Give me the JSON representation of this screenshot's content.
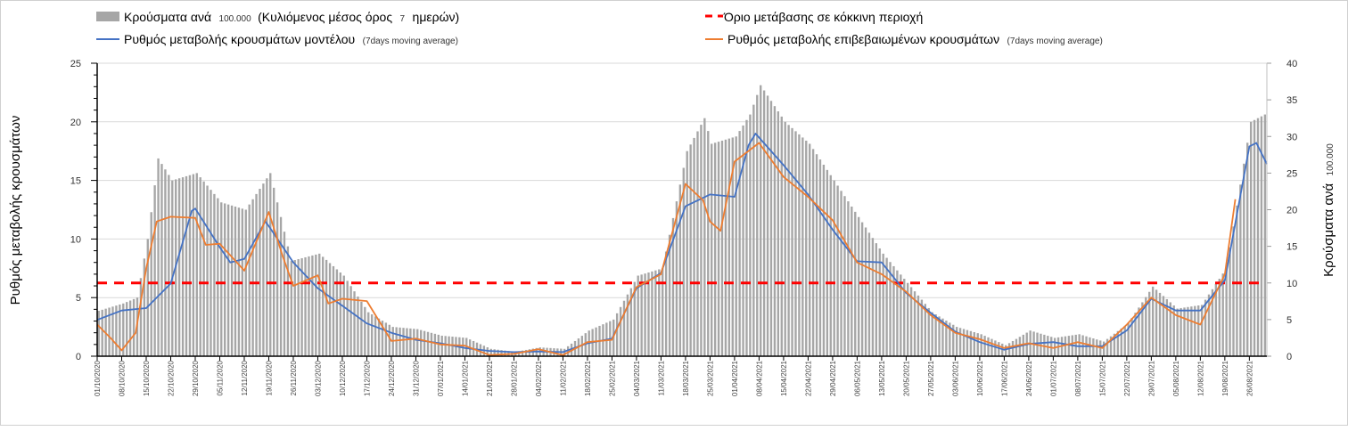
{
  "chart_data": {
    "type": "bar+line",
    "legend": {
      "bars_main": "Κρούσματα ανά",
      "bars_small1": "100.000",
      "bars_main2": "(Κυλιόμενος μέσος όρος",
      "bars_small2": "7",
      "bars_main3": "ημερών)",
      "model_main": "Ρυθμός μεταβολής κρουσμάτων μοντέλου",
      "model_small": "(7days moving average)",
      "threshold": "Όριο μετάβασης σε κόκκινη περιοχή",
      "confirmed_main": "Ρυθμός μεταβολής επιβεβαιωμένων κρουσμάτων",
      "confirmed_small": "(7days moving average)",
      "placement": "top"
    },
    "ylabel_left": "Ρυθμός μεταβολής κρουσμάτων",
    "ylabel_right_main": "Κρούσματα ανά",
    "ylabel_right_small": "100.000",
    "ylim_left": [
      0,
      25
    ],
    "yticks_left": [
      "0",
      "5",
      "10",
      "15",
      "20",
      "25"
    ],
    "ylim_right": [
      0,
      40
    ],
    "yticks_right": [
      "0",
      "5",
      "10",
      "15",
      "20",
      "25",
      "30",
      "35",
      "40"
    ],
    "grid": true,
    "x_days_total": 334,
    "x_labels": [
      "01/10/2020",
      "08/10/2020",
      "15/10/2020",
      "22/10/2020",
      "29/10/2020",
      "05/11/2020",
      "12/11/2020",
      "19/11/2020",
      "26/11/2020",
      "03/12/2020",
      "10/12/2020",
      "17/12/2020",
      "24/12/2020",
      "31/12/2020",
      "07/01/2021",
      "14/01/2021",
      "21/01/2021",
      "28/01/2021",
      "04/02/2021",
      "11/02/2021",
      "18/02/2021",
      "25/02/2021",
      "04/03/2021",
      "11/03/2021",
      "18/03/2021",
      "25/03/2021",
      "01/04/2021",
      "08/04/2021",
      "15/04/2021",
      "22/04/2021",
      "29/04/2021",
      "06/05/2021",
      "13/05/2021",
      "20/05/2021",
      "27/05/2021",
      "03/06/2021",
      "10/06/2021",
      "17/06/2021",
      "24/06/2021",
      "01/07/2021",
      "08/07/2021",
      "15/07/2021",
      "22/07/2021",
      "29/07/2021",
      "05/08/2021",
      "12/08/2021",
      "19/08/2021",
      "26/08/2021"
    ],
    "threshold_right_axis": 10,
    "series": [
      {
        "name": "cases_per_100k",
        "axis": "right",
        "kind": "bar",
        "color": "#a6a6a6",
        "points": [
          [
            0,
            6.2
          ],
          [
            7,
            7.2
          ],
          [
            11,
            8
          ],
          [
            14,
            16
          ],
          [
            17,
            27
          ],
          [
            21,
            24
          ],
          [
            28,
            25
          ],
          [
            35,
            21
          ],
          [
            42,
            20
          ],
          [
            49,
            25
          ],
          [
            55,
            13
          ],
          [
            63,
            14
          ],
          [
            70,
            11
          ],
          [
            77,
            6
          ],
          [
            84,
            4
          ],
          [
            91,
            3.7
          ],
          [
            98,
            2.8
          ],
          [
            105,
            2.5
          ],
          [
            112,
            1
          ],
          [
            119,
            0.6
          ],
          [
            126,
            1.2
          ],
          [
            133,
            1
          ],
          [
            140,
            3.5
          ],
          [
            147,
            5
          ],
          [
            154,
            11
          ],
          [
            161,
            12
          ],
          [
            168,
            28
          ],
          [
            173,
            32.5
          ],
          [
            175,
            29
          ],
          [
            182,
            30
          ],
          [
            186,
            33
          ],
          [
            189,
            37
          ],
          [
            196,
            32
          ],
          [
            203,
            29
          ],
          [
            210,
            24
          ],
          [
            217,
            19
          ],
          [
            224,
            14
          ],
          [
            231,
            10
          ],
          [
            238,
            6
          ],
          [
            245,
            4
          ],
          [
            252,
            3
          ],
          [
            259,
            1.5
          ],
          [
            266,
            3.5
          ],
          [
            273,
            2.5
          ],
          [
            280,
            3
          ],
          [
            287,
            2
          ],
          [
            294,
            4.5
          ],
          [
            301,
            9.5
          ],
          [
            308,
            6.5
          ],
          [
            315,
            7
          ],
          [
            322,
            12
          ],
          [
            329,
            32
          ],
          [
            333,
            33
          ]
        ]
      },
      {
        "name": "model",
        "axis": "left",
        "kind": "line",
        "color": "#4472c4",
        "points": [
          [
            0,
            3.1
          ],
          [
            7,
            3.9
          ],
          [
            14,
            4.1
          ],
          [
            21,
            6.2
          ],
          [
            27,
            12.4
          ],
          [
            28,
            12.6
          ],
          [
            35,
            9.3
          ],
          [
            38,
            8
          ],
          [
            42,
            8.3
          ],
          [
            48,
            11.5
          ],
          [
            49,
            11.1
          ],
          [
            56,
            8
          ],
          [
            63,
            5.8
          ],
          [
            70,
            4.3
          ],
          [
            77,
            2.8
          ],
          [
            84,
            2.0
          ],
          [
            91,
            1.4
          ],
          [
            98,
            1.1
          ],
          [
            105,
            0.7
          ],
          [
            112,
            0.45
          ],
          [
            119,
            0.35
          ],
          [
            126,
            0.4
          ],
          [
            133,
            0.35
          ],
          [
            140,
            1.1
          ],
          [
            147,
            1.5
          ],
          [
            154,
            5.8
          ],
          [
            161,
            7.1
          ],
          [
            168,
            12.8
          ],
          [
            175,
            13.8
          ],
          [
            182,
            13.6
          ],
          [
            186,
            18
          ],
          [
            188,
            19
          ],
          [
            196,
            16.3
          ],
          [
            203,
            13.8
          ],
          [
            210,
            10.8
          ],
          [
            217,
            8.1
          ],
          [
            224,
            8
          ],
          [
            231,
            5.4
          ],
          [
            238,
            3.7
          ],
          [
            245,
            2.1
          ],
          [
            252,
            1.2
          ],
          [
            259,
            0.55
          ],
          [
            266,
            1.05
          ],
          [
            273,
            1.2
          ],
          [
            280,
            0.85
          ],
          [
            287,
            0.85
          ],
          [
            294,
            2.2
          ],
          [
            301,
            4.9
          ],
          [
            308,
            3.9
          ],
          [
            315,
            3.9
          ],
          [
            322,
            6.5
          ],
          [
            329,
            17.9
          ],
          [
            331,
            18.2
          ],
          [
            334,
            16.4
          ]
        ]
      },
      {
        "name": "confirmed",
        "axis": "left",
        "kind": "line",
        "color": "#ed7d31",
        "points": [
          [
            0,
            2.7
          ],
          [
            4,
            1.5
          ],
          [
            7,
            0.5
          ],
          [
            11,
            2
          ],
          [
            14,
            7.5
          ],
          [
            17,
            11.5
          ],
          [
            21,
            11.9
          ],
          [
            28,
            11.8
          ],
          [
            31,
            9.5
          ],
          [
            35,
            9.6
          ],
          [
            42,
            7.3
          ],
          [
            49,
            12.3
          ],
          [
            53,
            8.5
          ],
          [
            56,
            6
          ],
          [
            63,
            6.9
          ],
          [
            66,
            4.5
          ],
          [
            70,
            4.9
          ],
          [
            77,
            4.7
          ],
          [
            84,
            1.3
          ],
          [
            91,
            1.5
          ],
          [
            98,
            1
          ],
          [
            105,
            0.9
          ],
          [
            112,
            0.1
          ],
          [
            119,
            0.2
          ],
          [
            126,
            0.6
          ],
          [
            133,
            0.1
          ],
          [
            140,
            1.2
          ],
          [
            147,
            1.4
          ],
          [
            154,
            5.9
          ],
          [
            161,
            7
          ],
          [
            168,
            14.7
          ],
          [
            173,
            13.3
          ],
          [
            175,
            11.5
          ],
          [
            178,
            10.7
          ],
          [
            182,
            16.6
          ],
          [
            189,
            18.2
          ],
          [
            196,
            15.3
          ],
          [
            203,
            13.6
          ],
          [
            210,
            11.6
          ],
          [
            217,
            8
          ],
          [
            224,
            7
          ],
          [
            231,
            5.5
          ],
          [
            238,
            3.5
          ],
          [
            245,
            2
          ],
          [
            252,
            1.45
          ],
          [
            259,
            0.7
          ],
          [
            266,
            1.1
          ],
          [
            273,
            0.7
          ],
          [
            280,
            1.2
          ],
          [
            287,
            0.7
          ],
          [
            294,
            2.7
          ],
          [
            301,
            5
          ],
          [
            308,
            3.5
          ],
          [
            315,
            2.7
          ],
          [
            322,
            7
          ],
          [
            325,
            13.4
          ]
        ]
      }
    ]
  }
}
